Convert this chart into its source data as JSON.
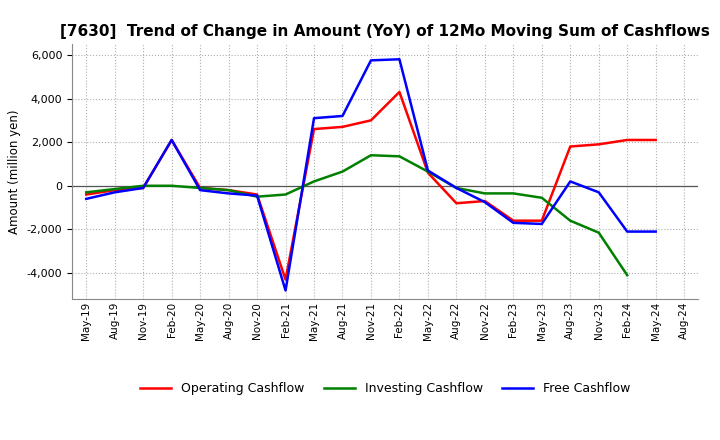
{
  "title": "[7630]  Trend of Change in Amount (YoY) of 12Mo Moving Sum of Cashflows",
  "ylabel": "Amount (million yen)",
  "x_labels": [
    "May-19",
    "Aug-19",
    "Nov-19",
    "Feb-20",
    "May-20",
    "Aug-20",
    "Nov-20",
    "Feb-21",
    "May-21",
    "Aug-21",
    "Nov-21",
    "Feb-22",
    "May-22",
    "Aug-22",
    "Nov-22",
    "Feb-23",
    "May-23",
    "Aug-23",
    "Nov-23",
    "Feb-24",
    "May-24",
    "Aug-24"
  ],
  "operating": [
    -400,
    -200,
    -100,
    2100,
    -100,
    -200,
    -400,
    -4300,
    2600,
    2700,
    3000,
    4300,
    600,
    -800,
    -700,
    -1600,
    -1600,
    1800,
    1900,
    2100,
    2100,
    null
  ],
  "investing": [
    -300,
    -150,
    0,
    0,
    -100,
    -200,
    -500,
    -400,
    200,
    650,
    1400,
    1350,
    650,
    -100,
    -350,
    -350,
    -550,
    -1600,
    -2150,
    -4100,
    null,
    null
  ],
  "free": [
    -600,
    -300,
    -100,
    2100,
    -200,
    -350,
    -450,
    -4800,
    3100,
    3200,
    5750,
    5800,
    700,
    -100,
    -750,
    -1700,
    -1750,
    200,
    -300,
    -2100,
    -2100,
    null
  ],
  "ylim": [
    -5200,
    6500
  ],
  "yticks": [
    -4000,
    -2000,
    0,
    2000,
    4000,
    6000
  ],
  "operating_color": "#ff0000",
  "investing_color": "#008000",
  "free_color": "#0000ff",
  "background_color": "#ffffff",
  "grid_color": "#b0b0b0",
  "linewidth": 1.8,
  "title_fontsize": 11,
  "ylabel_fontsize": 8.5,
  "tick_fontsize": 8,
  "xtick_fontsize": 7.5,
  "legend_fontsize": 9
}
